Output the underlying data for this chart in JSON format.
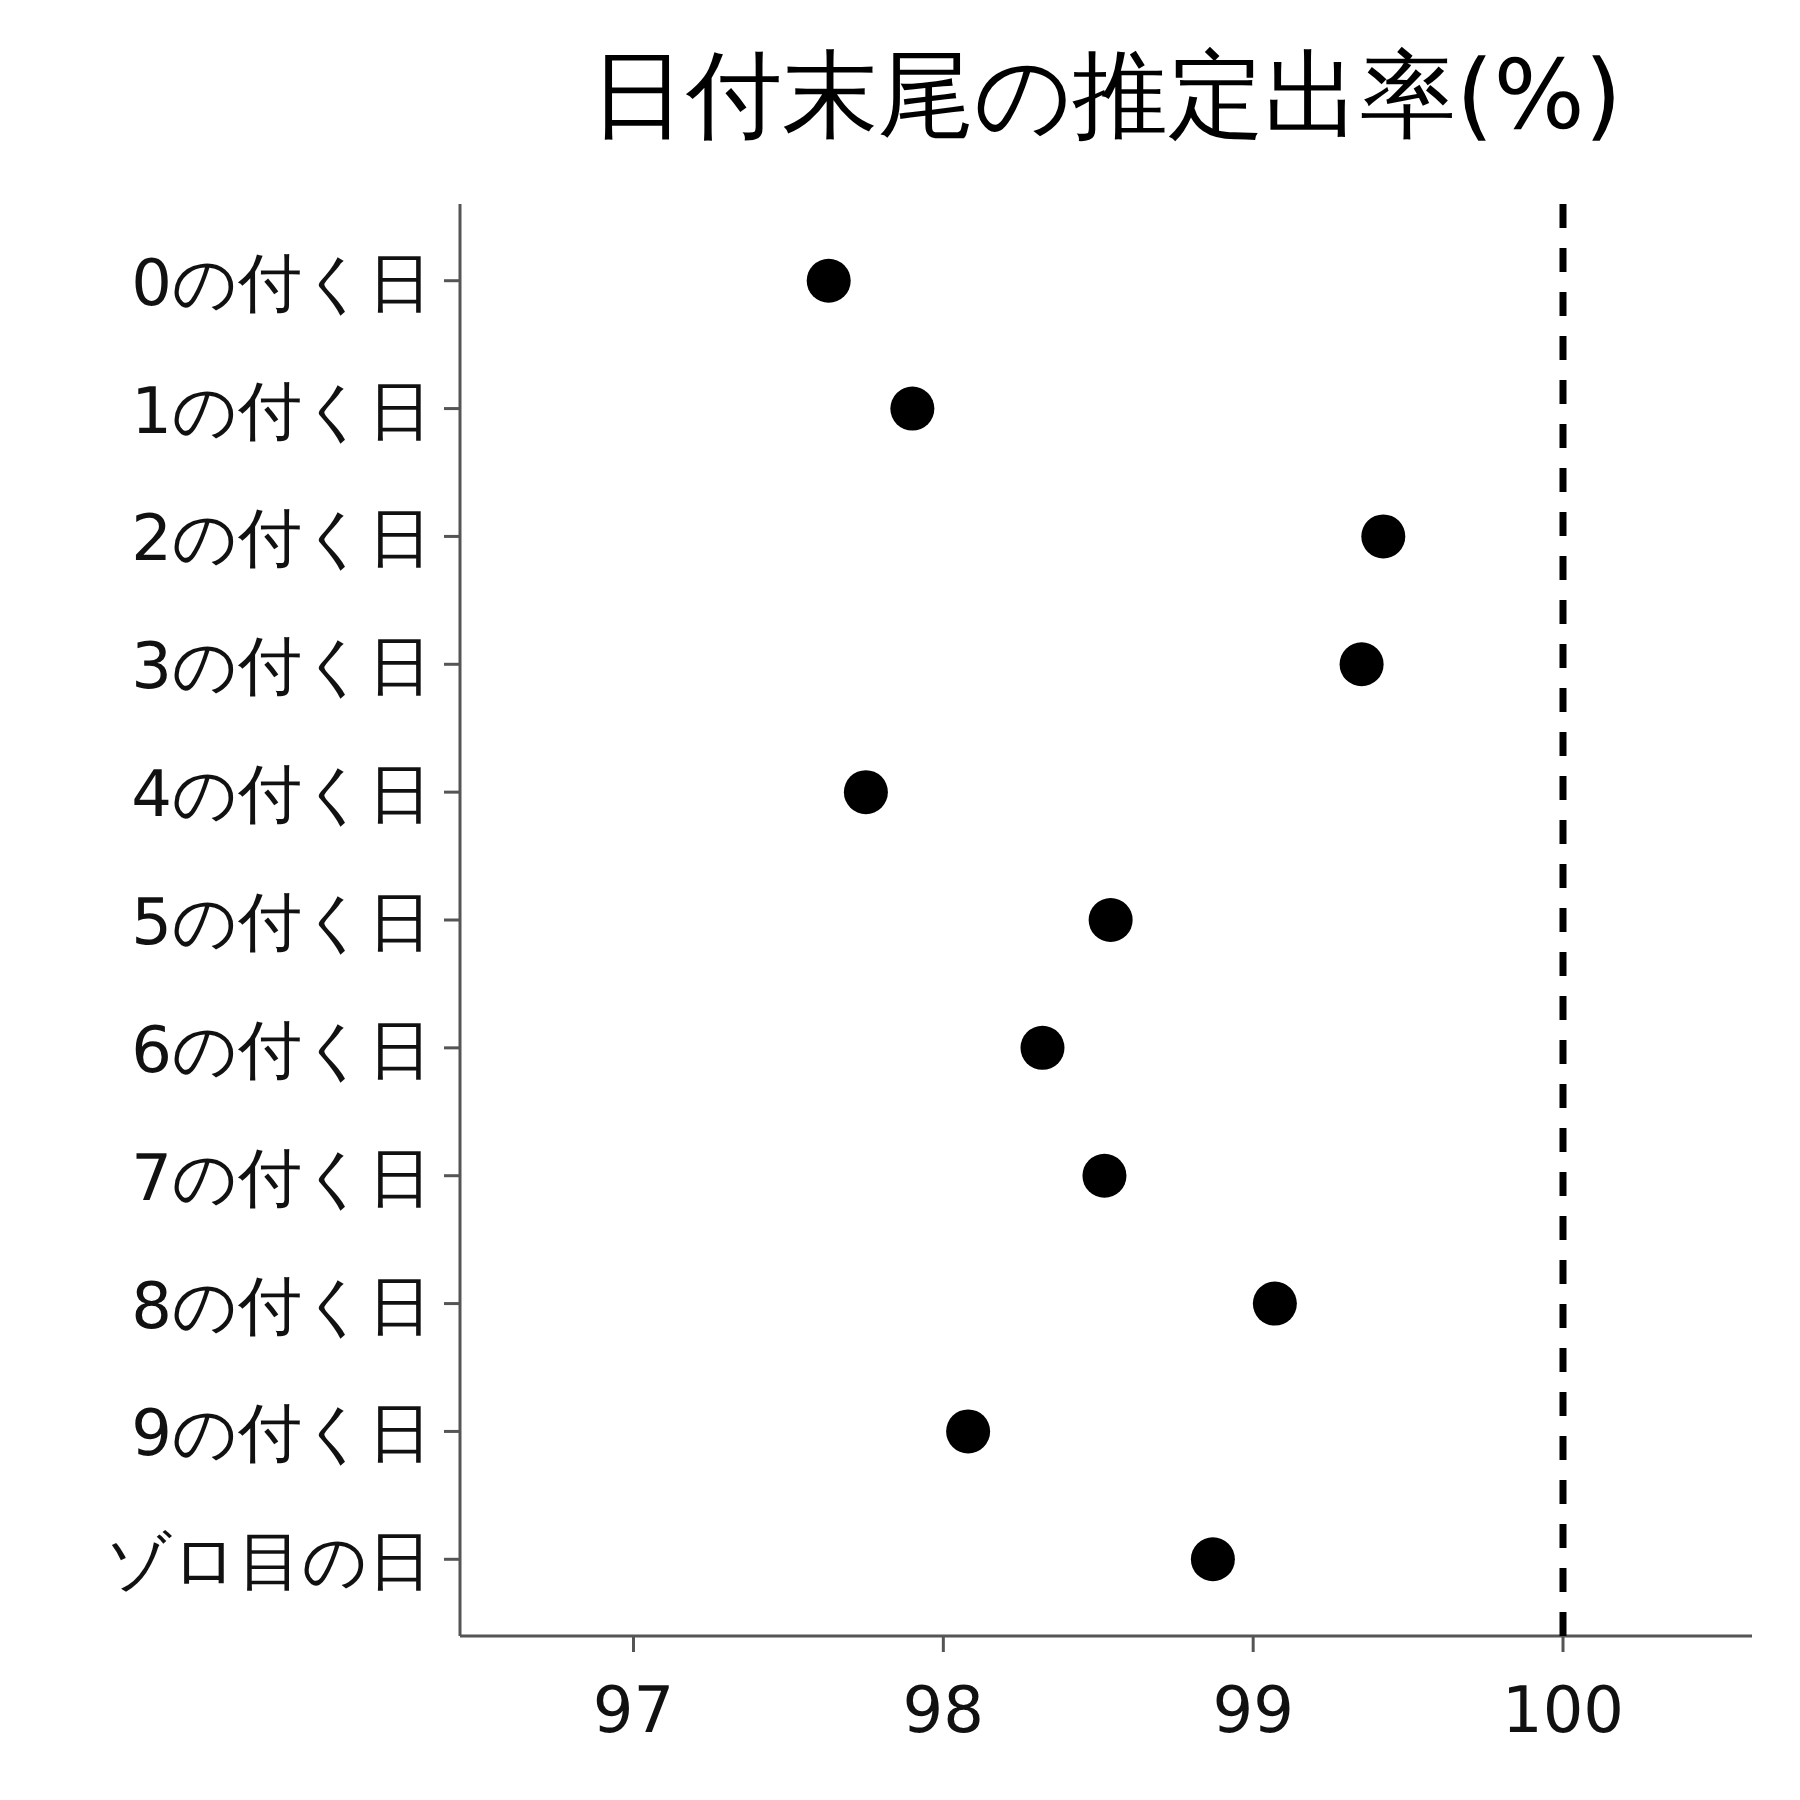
{
  "chart_data": {
    "type": "scatter",
    "title": "日付末尾の推定出率(%)",
    "orientation": "horizontal",
    "marker": "circle",
    "color": "#000000",
    "categories": [
      "0の付く日",
      "1の付く日",
      "2の付く日",
      "3の付く日",
      "4の付く日",
      "5の付く日",
      "6の付く日",
      "7の付く日",
      "8の付く日",
      "9の付く日",
      "ゾロ目の日"
    ],
    "values": [
      97.63,
      97.9,
      99.42,
      99.35,
      97.75,
      98.54,
      98.32,
      98.52,
      99.07,
      98.08,
      98.87
    ],
    "xlim": [
      96.44,
      100.61
    ],
    "xticks": [
      97,
      98,
      99,
      100
    ],
    "ref_lines": [
      {
        "axis": "x",
        "value": 100,
        "line_style": "dashed",
        "color": "#000000"
      }
    ]
  }
}
